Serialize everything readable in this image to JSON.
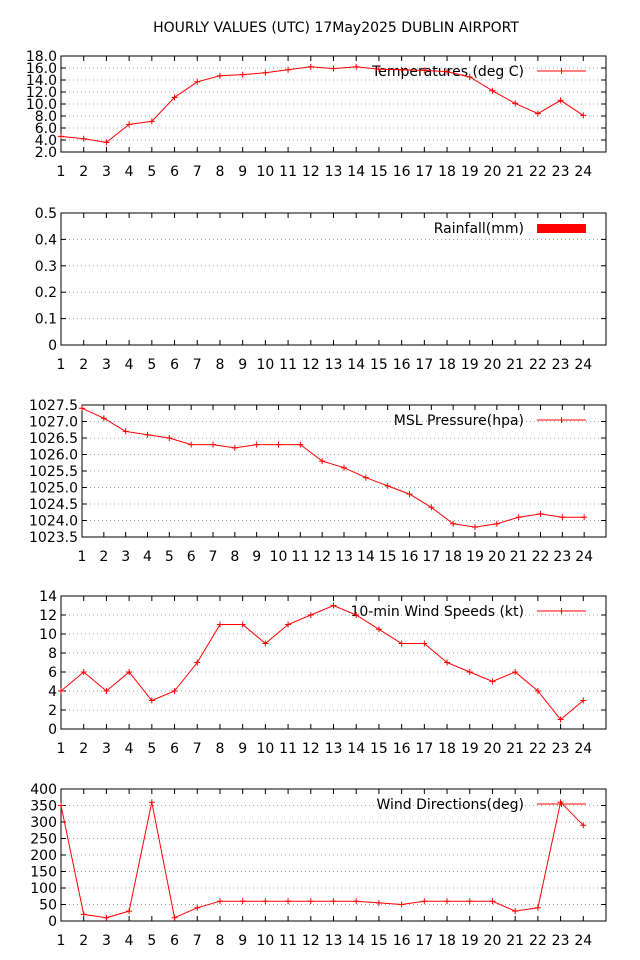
{
  "title": "HOURLY VALUES (UTC) 17May2025  DUBLIN AIRPORT",
  "colors": {
    "series": "#ff0000",
    "axis": "#000000",
    "grid": "#a0a0a0"
  },
  "chart_data": [
    {
      "type": "line",
      "legend": "Temperatures (deg C)",
      "legend_position": "top-right",
      "grid": true,
      "x": [
        1,
        2,
        3,
        4,
        5,
        6,
        7,
        8,
        9,
        10,
        11,
        12,
        13,
        14,
        15,
        16,
        17,
        18,
        19,
        20,
        21,
        22,
        23,
        24
      ],
      "xlim": [
        1,
        25
      ],
      "ylim": [
        2,
        18
      ],
      "yticks": [
        "2.0",
        "4.0",
        "6.0",
        "8.0",
        "10.0",
        "12.0",
        "14.0",
        "16.0",
        "18.0"
      ],
      "series": [
        {
          "values": [
            4.6,
            4.2,
            3.6,
            6.6,
            7.1,
            11.1,
            13.7,
            14.7,
            14.9,
            15.2,
            15.7,
            16.2,
            15.9,
            16.2,
            15.8,
            15.7,
            15.6,
            15.4,
            14.5,
            12.2,
            10.1,
            8.4,
            10.6,
            8.1
          ]
        }
      ]
    },
    {
      "type": "bar",
      "legend": "Rainfall(mm)",
      "legend_position": "top-right",
      "grid": true,
      "x": [
        1,
        2,
        3,
        4,
        5,
        6,
        7,
        8,
        9,
        10,
        11,
        12,
        13,
        14,
        15,
        16,
        17,
        18,
        19,
        20,
        21,
        22,
        23,
        24
      ],
      "xlim": [
        1,
        25
      ],
      "ylim": [
        0,
        0.5
      ],
      "yticks": [
        "0",
        "0.1",
        "0.2",
        "0.3",
        "0.4",
        "0.5"
      ],
      "series": [
        {
          "values": [
            0,
            0,
            0,
            0,
            0,
            0,
            0,
            0,
            0,
            0,
            0,
            0,
            0,
            0,
            0,
            0,
            0,
            0,
            0,
            0,
            0,
            0,
            0,
            0
          ]
        }
      ]
    },
    {
      "type": "line",
      "legend": "MSL Pressure(hpa)",
      "legend_position": "top-right",
      "grid": true,
      "x": [
        1,
        2,
        3,
        4,
        5,
        6,
        7,
        8,
        9,
        10,
        11,
        12,
        13,
        14,
        15,
        16,
        17,
        18,
        19,
        20,
        21,
        22,
        23,
        24
      ],
      "xlim": [
        1,
        25
      ],
      "ylim": [
        1023.5,
        1027.5
      ],
      "yticks": [
        "1023.5",
        "1024.0",
        "1024.5",
        "1025.0",
        "1025.5",
        "1026.0",
        "1026.5",
        "1027.0",
        "1027.5"
      ],
      "series": [
        {
          "values": [
            1027.4,
            1027.1,
            1026.7,
            1026.6,
            1026.5,
            1026.3,
            1026.3,
            1026.2,
            1026.3,
            1026.3,
            1026.3,
            1025.8,
            1025.6,
            1025.3,
            1025.05,
            1024.8,
            1024.4,
            1023.9,
            1023.8,
            1023.9,
            1024.1,
            1024.2,
            1024.1,
            1024.1
          ]
        }
      ]
    },
    {
      "type": "line",
      "legend": "10-min Wind Speeds (kt)",
      "legend_position": "top-right",
      "grid": true,
      "x": [
        1,
        2,
        3,
        4,
        5,
        6,
        7,
        8,
        9,
        10,
        11,
        12,
        13,
        14,
        15,
        16,
        17,
        18,
        19,
        20,
        21,
        22,
        23,
        24
      ],
      "xlim": [
        1,
        25
      ],
      "ylim": [
        0,
        14
      ],
      "yticks": [
        "0",
        "2",
        "4",
        "6",
        "8",
        "10",
        "12",
        "14"
      ],
      "series": [
        {
          "values": [
            4,
            6,
            4,
            6,
            3,
            4,
            7,
            11,
            11,
            9,
            11,
            12,
            13,
            12,
            10.5,
            9,
            9,
            7,
            6,
            5,
            6,
            4,
            1,
            3
          ]
        }
      ]
    },
    {
      "type": "line",
      "legend": "Wind Directions(deg)",
      "legend_position": "top-right",
      "grid": true,
      "x": [
        1,
        2,
        3,
        4,
        5,
        6,
        7,
        8,
        9,
        10,
        11,
        12,
        13,
        14,
        15,
        16,
        17,
        18,
        19,
        20,
        21,
        22,
        23,
        24
      ],
      "xlim": [
        1,
        25
      ],
      "ylim": [
        0,
        400
      ],
      "yticks": [
        "0",
        "50",
        "100",
        "150",
        "200",
        "250",
        "300",
        "350",
        "400"
      ],
      "series": [
        {
          "values": [
            350,
            20,
            10,
            30,
            360,
            10,
            40,
            60,
            60,
            60,
            60,
            60,
            60,
            60,
            55,
            50,
            60,
            60,
            60,
            60,
            30,
            40,
            360,
            290
          ]
        }
      ]
    }
  ]
}
